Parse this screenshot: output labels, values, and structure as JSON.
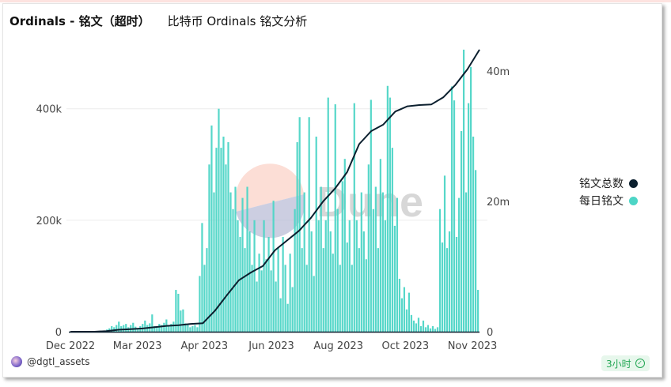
{
  "title": {
    "main": "Ordinals - 铭文（超时）",
    "subtitle": "比特币 Ordinals 铭文分析"
  },
  "legend": [
    {
      "label": "铭文总数",
      "color": "#0b1f2e"
    },
    {
      "label": "每日铭文",
      "color": "#4dd5c6"
    }
  ],
  "footer": {
    "user": "@dgtl_assets",
    "badge": "3小时",
    "badge_icon": "check-circle-icon"
  },
  "watermark": "Dune",
  "chart_data": {
    "type": "bar+line",
    "x_tick_labels": [
      "Dec 2022",
      "Mar 2023",
      "Apr 2023",
      "Jun 2023",
      "Aug 2023",
      "Oct 2023",
      "Nov 2023"
    ],
    "left_axis": {
      "ticks": [
        "0",
        "200k",
        "400k"
      ],
      "tick_values": [
        0,
        200000,
        400000
      ],
      "range": [
        0,
        520000
      ]
    },
    "right_axis": {
      "ticks": [
        "0",
        "20m",
        "40m"
      ],
      "tick_values": [
        0,
        20000000,
        40000000
      ],
      "range": [
        0,
        44500000
      ]
    },
    "grid": true,
    "legend_position": "right",
    "series": [
      {
        "name": "每日铭文",
        "type": "bar",
        "axis": "left",
        "unit": "thousands",
        "color": "#4dd5c6",
        "values": [
          0,
          0,
          0,
          0,
          0,
          0,
          0,
          0,
          0,
          0,
          0,
          0,
          0,
          0,
          2,
          4,
          6,
          10,
          8,
          12,
          18,
          10,
          12,
          14,
          8,
          12,
          16,
          9,
          6,
          10,
          14,
          20,
          12,
          15,
          31,
          10,
          8,
          14,
          12,
          16,
          22,
          12,
          14,
          18,
          75,
          68,
          38,
          40,
          15,
          12,
          8,
          10,
          12,
          8,
          100,
          195,
          120,
          150,
          300,
          370,
          250,
          330,
          400,
          330,
          350,
          300,
          340,
          250,
          220,
          260,
          200,
          170,
          240,
          150,
          260,
          180,
          120,
          200,
          90,
          140,
          110,
          200,
          130,
          170,
          110,
          235,
          90,
          150,
          60,
          170,
          120,
          50,
          140,
          80,
          220,
          340,
          385,
          150,
          250,
          120,
          385,
          180,
          100,
          350,
          200,
          260,
          150,
          200,
          420,
          180,
          140,
          408,
          220,
          120,
          270,
          310,
          160,
          200,
          120,
          410,
          200,
          150,
          250,
          180,
          130,
          300,
          416,
          220,
          260,
          150,
          310,
          250,
          200,
          441,
          420,
          330,
          190,
          240,
          95,
          60,
          80,
          40,
          70,
          30,
          20,
          15,
          25,
          10,
          20,
          8,
          12,
          6,
          10,
          5,
          8,
          220,
          160,
          280,
          150,
          180,
          440,
          415,
          170,
          240,
          360,
          506,
          250,
          410,
          475,
          350,
          290,
          75
        ]
      },
      {
        "name": "铭文总数",
        "type": "line",
        "axis": "right",
        "unit": "millions",
        "color": "#0b1f2e",
        "values": [
          0,
          0,
          0,
          0.1,
          0.3,
          0.4,
          0.5,
          0.7,
          0.9,
          1.0,
          1.2,
          1.3,
          3.2,
          5.6,
          7.9,
          9.1,
          10.1,
          12.5,
          14.0,
          15.5,
          17.5,
          20.0,
          22.0,
          24.5,
          28.8,
          30.8,
          31.8,
          33.8,
          34.6,
          34.8,
          34.9,
          36.0,
          37.9,
          40.3,
          43.3
        ]
      }
    ]
  }
}
